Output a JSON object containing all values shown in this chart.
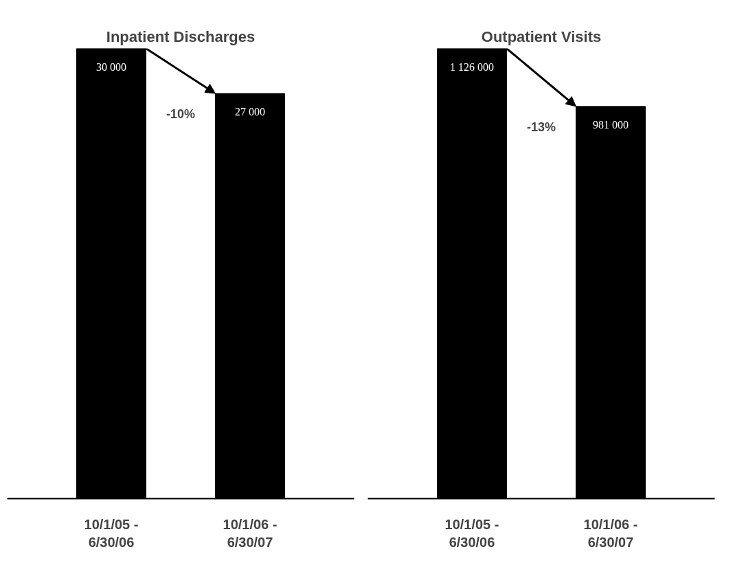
{
  "chart_data": [
    {
      "type": "bar",
      "title": "Inpatient Discharges",
      "categories": [
        "10/1/05 -\n6/30/06",
        "10/1/06 -\n6/30/07"
      ],
      "values": [
        30000,
        27000
      ],
      "value_labels": [
        "30 000",
        "27 000"
      ],
      "color": "#000000",
      "ylim": [
        0,
        30000
      ],
      "tick_labels": "x",
      "grid": false,
      "annotations": [
        "-10%"
      ]
    },
    {
      "type": "bar",
      "title": "Outpatient Visits",
      "categories": [
        "10/1/05 -\n6/30/06",
        "10/1/06 -\n6/30/07"
      ],
      "values": [
        1126000,
        981000
      ],
      "value_labels": [
        "1 126 000",
        "981 000"
      ],
      "color": "#000000",
      "ylim": [
        0,
        1126000
      ],
      "tick_labels": "x",
      "grid": false,
      "annotations": [
        "-13%"
      ]
    }
  ]
}
